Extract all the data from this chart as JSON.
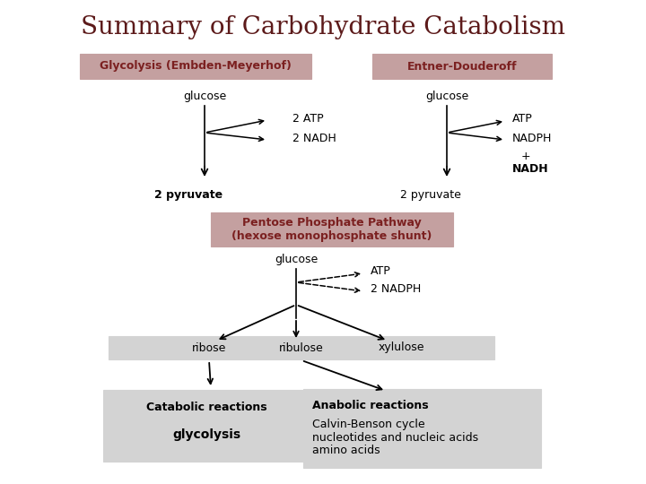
{
  "title": "Summary of Carbohydrate Catabolism",
  "title_color": "#5C1A1A",
  "title_fontsize": 20,
  "bg_color": "#FFFFFF",
  "box_color_pink": "#C4A0A0",
  "box_color_gray": "#D3D3D3",
  "box_text_color": "#7B2020",
  "label_color": "#000000",
  "sections": {
    "glycolysis_label": "Glycolysis (Embden-Meyerhof)",
    "entner_label": "Entner-Douderoff",
    "pentose_label": "Pentose Phosphate Pathway\n(hexose monophosphate shunt)"
  },
  "metabolites": {
    "glucose1": "glucose",
    "glucose2": "glucose",
    "glucose3": "glucose",
    "pyruvate1": "2 pyruvate",
    "pyruvate2": "2 pyruvate",
    "ribose": "ribose",
    "ribulose": "ribulose",
    "xylulose": "xylulose"
  },
  "products": {
    "atp1": "2 ATP",
    "nadh1": "2 NADH",
    "atp2": "ATP",
    "nadph2": "NADPH",
    "nadh2": "NADH",
    "plus": "+",
    "atp3": "ATP",
    "nadph3": "2 NADPH"
  },
  "bottom_boxes": {
    "catabolic_title": "Catabolic reactions",
    "catabolic_content": "glycolysis",
    "anabolic_title": "Anabolic reactions",
    "anabolic_content": "Calvin-Benson cycle\nnucleotides and nucleic acids\namino acids"
  }
}
